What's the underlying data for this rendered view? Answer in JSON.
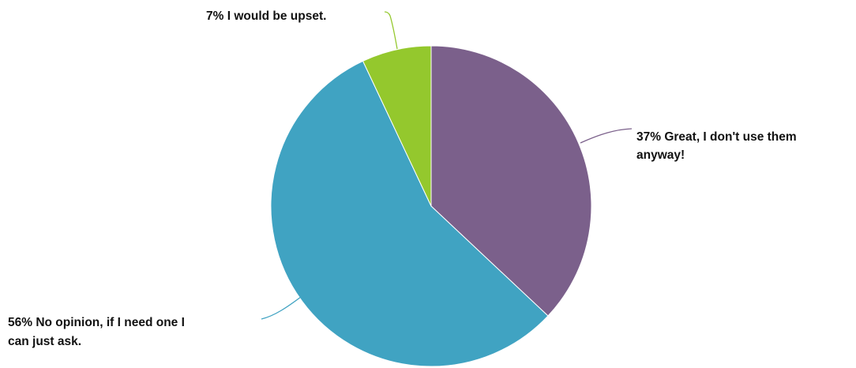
{
  "chart_data": {
    "type": "pie",
    "start_angle_deg": 0,
    "direction": "clockwise",
    "legend": "none",
    "slices": [
      {
        "label_lines": [
          "37% Great, I don't use them",
          "anyway!"
        ],
        "percent": 37,
        "value": 0.37,
        "color": "#7b608b"
      },
      {
        "label_lines": [
          "56% No opinion, if I need one I",
          "can just ask."
        ],
        "percent": 56,
        "value": 0.56,
        "color": "#40a3c2"
      },
      {
        "label_lines": [
          "7% I would be upset."
        ],
        "percent": 7,
        "value": 0.07,
        "color": "#94c82d"
      }
    ]
  }
}
